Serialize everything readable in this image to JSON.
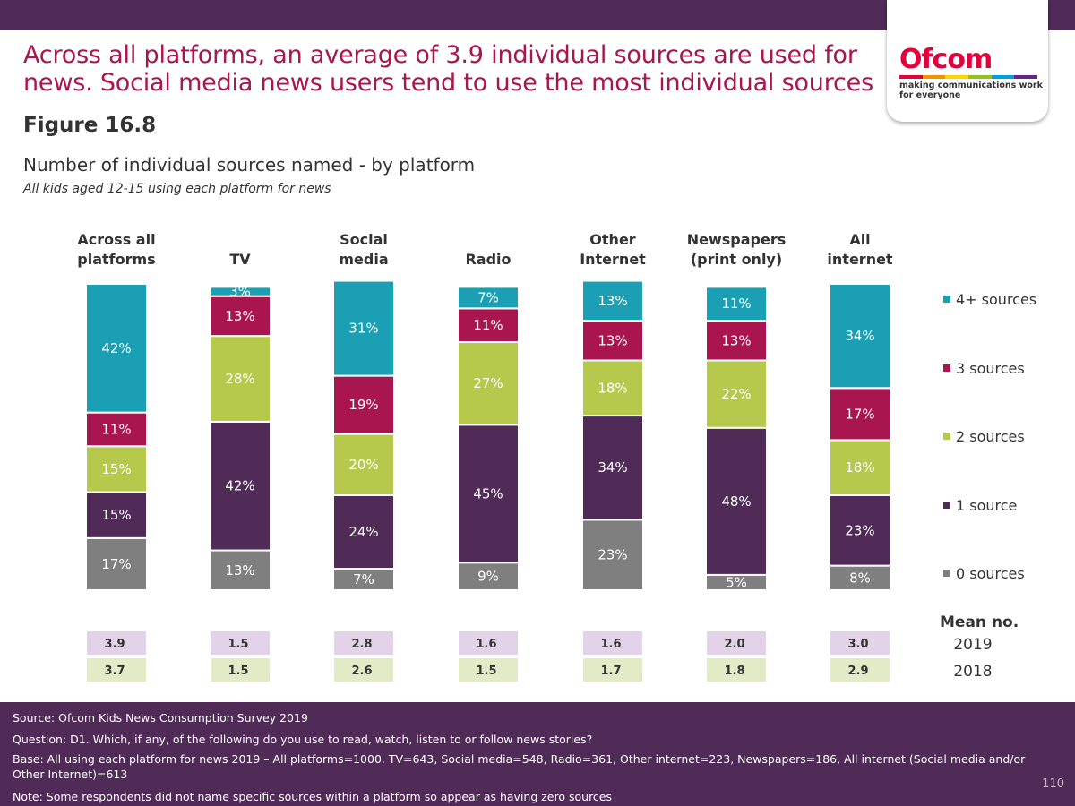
{
  "header": {
    "headline": "Across all platforms, an average of 3.9 individual sources are used for news. Social media news users tend to use the most individual sources",
    "figure_label": "Figure 16.8",
    "chart_title": "Number of individual sources named - by platform",
    "chart_subtitle": "All kids aged 12-15 using each platform for news"
  },
  "logo": {
    "wordmark": "Ofcom",
    "tagline": "making communications work for everyone",
    "stripe_colors": [
      "#e4003b",
      "#f39200",
      "#ffd500",
      "#95c11f",
      "#009fe3",
      "#662483"
    ]
  },
  "chart_data": {
    "type": "bar",
    "stacked": true,
    "orientation": "vertical",
    "categories": [
      [
        "Across all",
        "platforms"
      ],
      [
        "TV"
      ],
      [
        "Social",
        "media"
      ],
      [
        "Radio"
      ],
      [
        "Other",
        "Internet"
      ],
      [
        "Newspapers",
        "(print only)"
      ],
      [
        "All",
        "internet"
      ]
    ],
    "series": [
      {
        "name": "0 sources",
        "color": "#7f7f7f",
        "values": [
          17,
          13,
          7,
          9,
          23,
          5,
          8
        ]
      },
      {
        "name": "1 source",
        "color": "#512b58",
        "values": [
          15,
          42,
          24,
          45,
          34,
          48,
          23
        ]
      },
      {
        "name": "2 sources",
        "color": "#b6c94d",
        "values": [
          15,
          28,
          20,
          27,
          18,
          22,
          18
        ]
      },
      {
        "name": "3 sources",
        "color": "#a8154f",
        "values": [
          11,
          13,
          19,
          11,
          13,
          13,
          17
        ]
      },
      {
        "name": "4+ sources",
        "color": "#1a9fb5",
        "values": [
          42,
          3,
          31,
          7,
          13,
          11,
          34
        ]
      }
    ],
    "value_suffix": "%",
    "legend_order": [
      "4+ sources",
      "3 sources",
      "2 sources",
      "1 source",
      "0 sources"
    ],
    "legend_position": "right",
    "mean": {
      "title": "Mean no.",
      "rows": [
        {
          "year": "2019",
          "color": "#e2d3e9",
          "values": [
            "3.9",
            "1.5",
            "2.8",
            "1.6",
            "1.6",
            "2.0",
            "3.0"
          ]
        },
        {
          "year": "2018",
          "color": "#e3eac6",
          "values": [
            "3.7",
            "1.5",
            "2.6",
            "1.5",
            "1.7",
            "1.8",
            "2.9"
          ]
        }
      ]
    }
  },
  "footer": {
    "source": "Source: Ofcom Kids News Consumption Survey 2019",
    "question": "Question: D1. Which, if any, of the following do you use to read, watch, listen to or follow news stories?",
    "base": "Base: All using each platform for news 2019 – All platforms=1000, TV=643, Social media=548, Radio=361, Other internet=223, Newspapers=186, All internet (Social media and/or Other Internet)=613",
    "note": "Note: Some respondents did not name specific sources within a platform so appear as having zero sources",
    "page_number": "110"
  }
}
